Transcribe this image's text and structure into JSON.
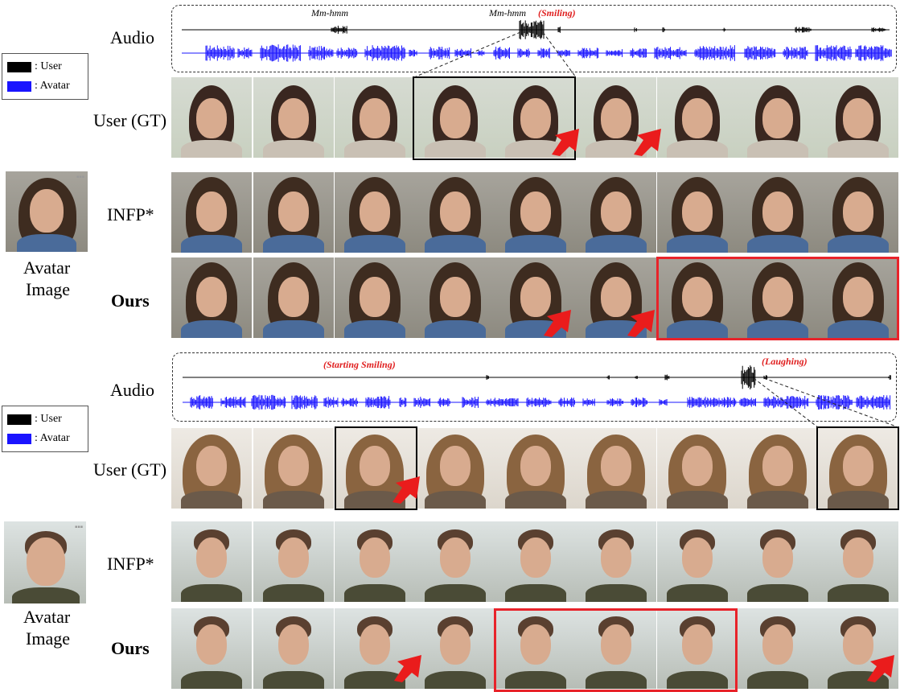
{
  "sections": [
    {
      "audio_label": "Audio",
      "annotations": {
        "mm1": "Mm-hmm",
        "mm2": "Mm-hmm",
        "smiling": "(Smiling)"
      },
      "user_label": "User (GT)",
      "infp_label": "INFP*",
      "ours_label": "Ours",
      "avatar_label_1": "Avatar",
      "avatar_label_2": "Image"
    },
    {
      "audio_label": "Audio",
      "annotations": {
        "starting_smiling": "(Starting Smiling)",
        "laughing": "(Laughing)"
      },
      "user_label": "User (GT)",
      "infp_label": "INFP*",
      "ours_label": "Ours",
      "avatar_label_1": "Avatar",
      "avatar_label_2": "Image"
    }
  ],
  "legend": {
    "user": ": User",
    "avatar": ": Avatar"
  },
  "colors": {
    "user_wave": "#000000",
    "avatar_wave": "#1a14ff",
    "highlight_red": "#e8232a"
  }
}
